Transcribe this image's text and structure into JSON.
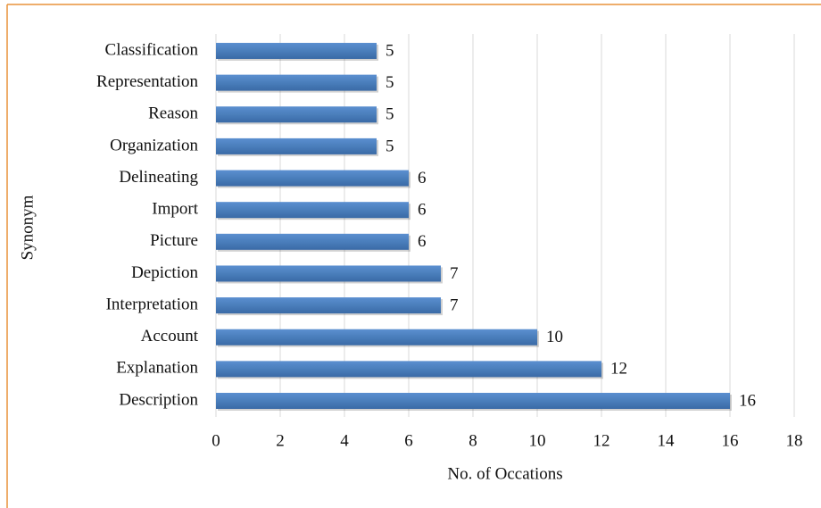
{
  "chart_data": {
    "type": "bar",
    "orientation": "horizontal",
    "categories": [
      "Classification",
      "Representation",
      "Reason",
      "Organization",
      "Delineating",
      "Import",
      "Picture",
      "Depiction",
      "Interpretation",
      "Account",
      "Explanation",
      "Description"
    ],
    "values": [
      5,
      5,
      5,
      5,
      6,
      6,
      6,
      7,
      7,
      10,
      12,
      16
    ],
    "color": "#4a7ebb",
    "xlabel": "No. of Occations",
    "ylabel": "Synonym",
    "xlim": [
      0,
      18
    ],
    "xticks": [
      0,
      2,
      4,
      6,
      8,
      10,
      12,
      14,
      16,
      18
    ],
    "grid": true
  }
}
